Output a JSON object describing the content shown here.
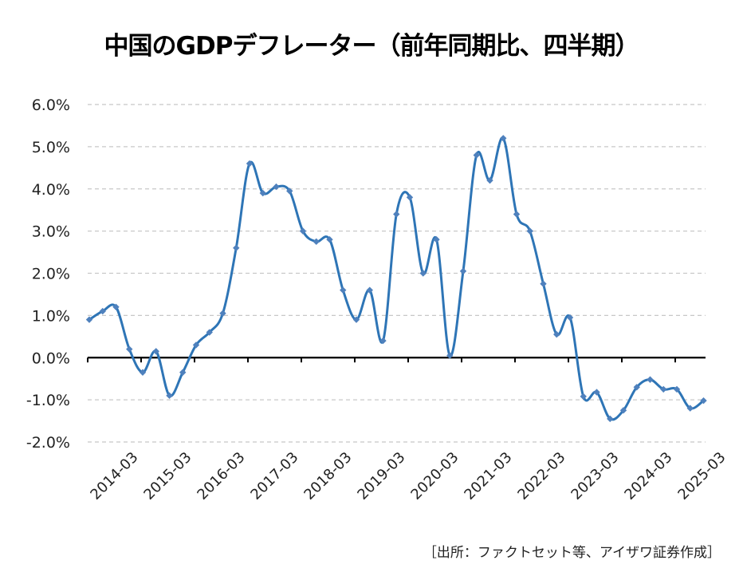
{
  "chart_data": {
    "type": "line",
    "title": "中国のGDPデフレーター（前年同期比、四半期）",
    "xlabel": "",
    "ylabel": "",
    "ylim": [
      -2.0,
      6.0
    ],
    "y_ticks": [
      "6.0%",
      "5.0%",
      "4.0%",
      "3.0%",
      "2.0%",
      "1.0%",
      "0.0%",
      "-1.0%",
      "-2.0%"
    ],
    "y_tick_values": [
      6,
      5,
      4,
      3,
      2,
      1,
      0,
      -1,
      -2
    ],
    "x_tick_labels": [
      "2014-03",
      "2015-03",
      "2016-03",
      "2017-03",
      "2018-03",
      "2019-03",
      "2020-03",
      "2021-03",
      "2022-03",
      "2023-03",
      "2024-03",
      "2025-03"
    ],
    "grid": "horizontal-dashed",
    "legend": "none",
    "categories": [
      "2014-03",
      "2014-06",
      "2014-09",
      "2014-12",
      "2015-03",
      "2015-06",
      "2015-09",
      "2015-12",
      "2016-03",
      "2016-06",
      "2016-09",
      "2016-12",
      "2017-03",
      "2017-06",
      "2017-09",
      "2017-12",
      "2018-03",
      "2018-06",
      "2018-09",
      "2018-12",
      "2019-03",
      "2019-06",
      "2019-09",
      "2019-12",
      "2020-03",
      "2020-06",
      "2020-09",
      "2020-12",
      "2021-03",
      "2021-06",
      "2021-09",
      "2021-12",
      "2022-03",
      "2022-06",
      "2022-09",
      "2022-12",
      "2023-03",
      "2023-06",
      "2023-09",
      "2023-12",
      "2024-03",
      "2024-06",
      "2024-09",
      "2024-12",
      "2025-03",
      "2025-06",
      "2025-09"
    ],
    "series": [
      {
        "name": "GDPデフレーター（前年同期比）",
        "color": "#2E75B6",
        "marker_color": "#4F81BD",
        "values": [
          0.9,
          1.1,
          1.2,
          0.2,
          -0.35,
          0.15,
          -0.9,
          -0.35,
          0.3,
          0.6,
          1.05,
          2.6,
          4.6,
          3.9,
          4.05,
          3.95,
          3.0,
          2.75,
          2.8,
          1.6,
          0.9,
          1.6,
          0.4,
          3.4,
          3.8,
          2.0,
          2.8,
          0.05,
          2.05,
          4.8,
          4.2,
          5.2,
          3.4,
          3.0,
          1.75,
          0.55,
          0.95,
          -0.92,
          -0.82,
          -1.45,
          -1.25,
          -0.7,
          -0.52,
          -0.75,
          -0.75,
          -1.2,
          -1.02
        ]
      }
    ],
    "source": "［出所：ファクトセット等、アイザワ証券作成］"
  }
}
